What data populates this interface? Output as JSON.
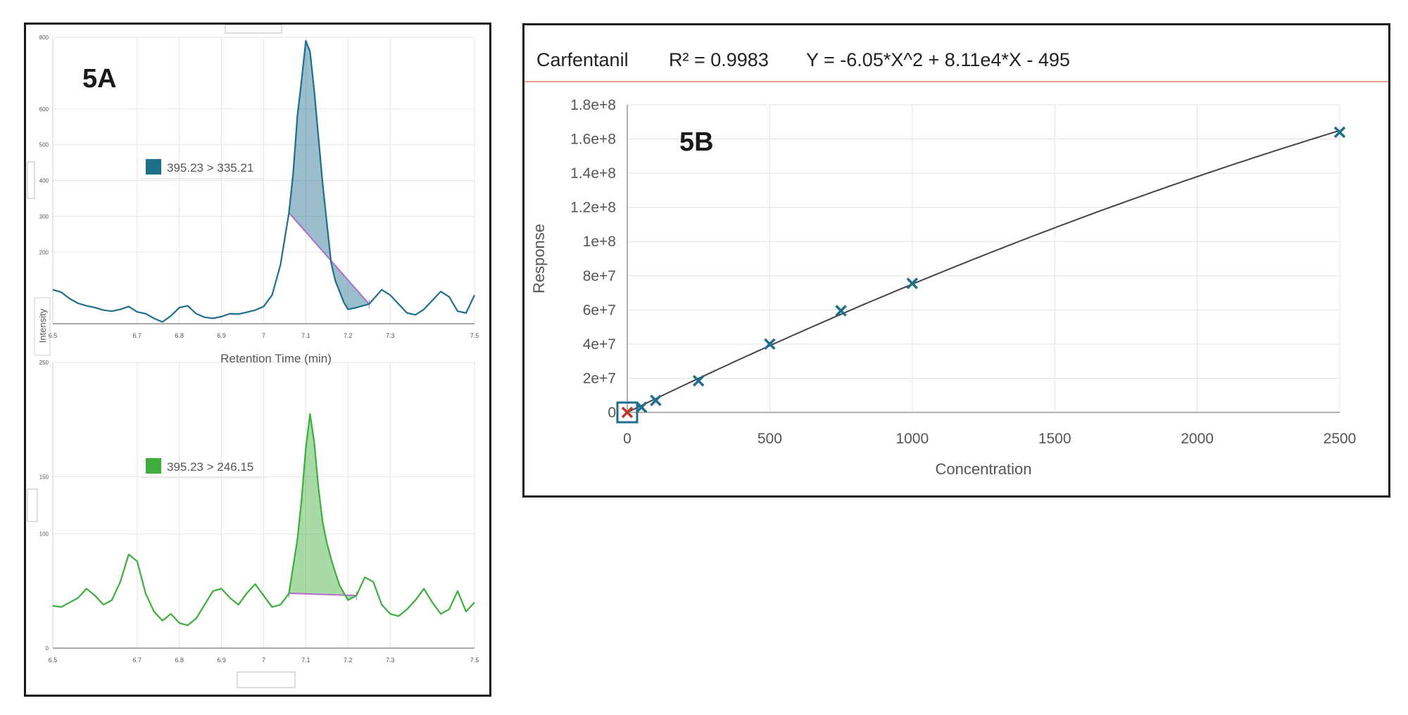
{
  "chart_data": [
    {
      "panel_label": "5A",
      "type": "line",
      "xlabel": "Retention Time (min)",
      "ylabel": "Intensity",
      "xlim": [
        6.5,
        7.5
      ],
      "ylim": [
        0,
        800
      ],
      "x_ticks": [
        "6.5",
        "6.7",
        "6.8",
        "6.9",
        "7",
        "7.1",
        "7.2",
        "7.3",
        "7.5"
      ],
      "y_ticks": [
        "200",
        "300",
        "400",
        "500",
        "600",
        "800"
      ],
      "grid": true,
      "legend": "395.23 > 335.21",
      "color": "#1f6e8c",
      "integration_window": [
        7.06,
        7.25
      ],
      "series": {
        "x": [
          6.5,
          6.52,
          6.54,
          6.56,
          6.58,
          6.6,
          6.62,
          6.64,
          6.66,
          6.68,
          6.7,
          6.72,
          6.74,
          6.76,
          6.78,
          6.8,
          6.82,
          6.84,
          6.86,
          6.88,
          6.9,
          6.92,
          6.94,
          6.96,
          6.98,
          7.0,
          7.02,
          7.04,
          7.06,
          7.07,
          7.08,
          7.09,
          7.1,
          7.11,
          7.12,
          7.13,
          7.14,
          7.15,
          7.16,
          7.17,
          7.18,
          7.19,
          7.2,
          7.22,
          7.25,
          7.28,
          7.3,
          7.32,
          7.34,
          7.36,
          7.38,
          7.4,
          7.42,
          7.44,
          7.46,
          7.48,
          7.5
        ],
        "y": [
          95,
          88,
          70,
          57,
          50,
          45,
          38,
          35,
          40,
          48,
          33,
          28,
          15,
          5,
          22,
          45,
          50,
          28,
          18,
          15,
          20,
          28,
          27,
          32,
          38,
          48,
          80,
          165,
          310,
          420,
          580,
          680,
          790,
          760,
          650,
          520,
          390,
          280,
          170,
          120,
          90,
          60,
          40,
          45,
          55,
          95,
          80,
          55,
          30,
          25,
          40,
          65,
          90,
          75,
          35,
          30,
          80
        ]
      }
    },
    {
      "panel_label": "",
      "type": "line",
      "xlabel": "",
      "ylabel": "",
      "xlim": [
        6.5,
        7.5
      ],
      "ylim": [
        0,
        250
      ],
      "x_ticks": [
        "6.5",
        "6.7",
        "6.8",
        "6.9",
        "7",
        "7.1",
        "7.2",
        "7.3",
        "7.5"
      ],
      "y_ticks": [
        "0",
        "100",
        "150",
        "250"
      ],
      "grid": true,
      "legend": "395.23 > 246.15",
      "color": "#3cae3c",
      "integration_window": [
        7.05,
        7.23
      ],
      "series": {
        "x": [
          6.5,
          6.52,
          6.54,
          6.56,
          6.58,
          6.6,
          6.62,
          6.64,
          6.66,
          6.68,
          6.7,
          6.72,
          6.74,
          6.76,
          6.78,
          6.8,
          6.82,
          6.84,
          6.86,
          6.88,
          6.9,
          6.92,
          6.94,
          6.96,
          6.98,
          7.0,
          7.02,
          7.04,
          7.06,
          7.08,
          7.09,
          7.1,
          7.11,
          7.12,
          7.13,
          7.14,
          7.15,
          7.16,
          7.17,
          7.18,
          7.2,
          7.22,
          7.24,
          7.26,
          7.28,
          7.3,
          7.32,
          7.34,
          7.36,
          7.38,
          7.4,
          7.42,
          7.44,
          7.46,
          7.48,
          7.5
        ],
        "y": [
          37,
          36,
          40,
          44,
          52,
          46,
          38,
          42,
          58,
          82,
          76,
          48,
          32,
          24,
          30,
          22,
          20,
          26,
          38,
          50,
          52,
          44,
          38,
          48,
          56,
          46,
          36,
          38,
          48,
          95,
          130,
          175,
          205,
          180,
          140,
          110,
          92,
          78,
          66,
          55,
          42,
          46,
          62,
          58,
          38,
          30,
          28,
          34,
          42,
          52,
          40,
          30,
          34,
          50,
          32,
          40
        ]
      }
    },
    {
      "panel_label": "5B",
      "type": "scatter",
      "header": {
        "compound": "Carfentanil",
        "r2": "R² = 0.9983",
        "equation": "Y = -6.05*X^2 + 8.11e4*X - 495"
      },
      "xlabel": "Concentration",
      "ylabel": "Response",
      "xlim": [
        0,
        2500
      ],
      "ylim": [
        0,
        180000000
      ],
      "x_ticks": [
        "0",
        "500",
        "1000",
        "1500",
        "2000",
        "2500"
      ],
      "y_ticks": [
        "0",
        "2e+7",
        "4e+7",
        "6e+7",
        "8e+7",
        "1e+8",
        "1.2e+8",
        "1.4e+8",
        "1.6e+8",
        "1.8e+8"
      ],
      "grid": true,
      "fit": {
        "a": -6.05,
        "b": 81100,
        "c": -495
      },
      "points": [
        {
          "x": 0,
          "y": 0,
          "excluded": true
        },
        {
          "x": 50,
          "y": 3000000,
          "excluded": false
        },
        {
          "x": 100,
          "y": 7000000,
          "excluded": false
        },
        {
          "x": 250,
          "y": 18500000,
          "excluded": false
        },
        {
          "x": 500,
          "y": 40000000,
          "excluded": false
        },
        {
          "x": 750,
          "y": 59500000,
          "excluded": false
        },
        {
          "x": 1000,
          "y": 75500000,
          "excluded": false
        },
        {
          "x": 2500,
          "y": 164000000,
          "excluded": false
        }
      ],
      "point_color": "#1f6e8c",
      "excluded_color": "#c0392b"
    }
  ]
}
